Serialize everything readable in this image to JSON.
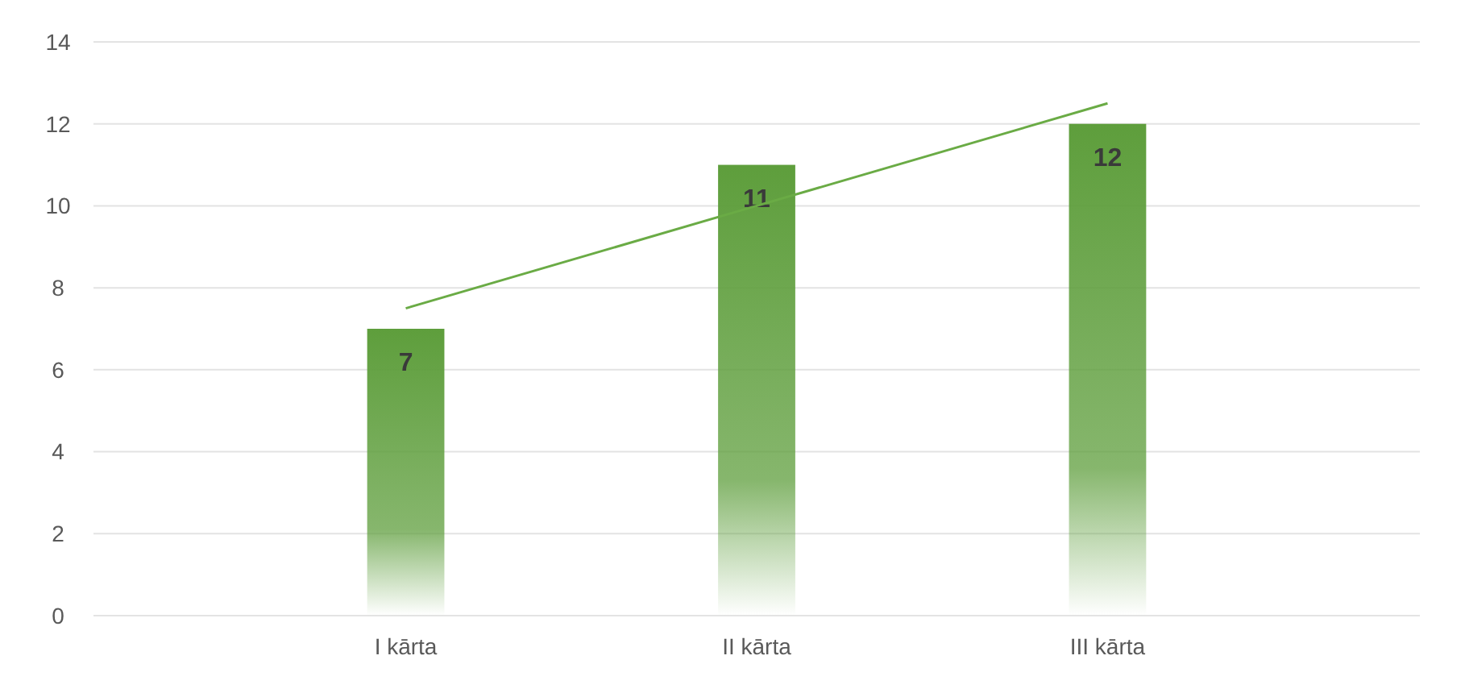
{
  "chart_data": {
    "type": "bar",
    "categories": [
      "I kārta",
      "II kārta",
      "III kārta"
    ],
    "series": [
      {
        "color": "#5e9e3c",
        "values": [
          7,
          11,
          12
        ],
        "value_labels": [
          "7",
          "11",
          "12"
        ]
      },
      {
        "type": "line",
        "color": "#6aab45",
        "values": [
          7.5,
          10,
          12.5
        ]
      }
    ],
    "ylim": [
      0,
      14
    ],
    "yticks": [
      0,
      2,
      4,
      6,
      8,
      10,
      12,
      14
    ],
    "grid": "y"
  }
}
